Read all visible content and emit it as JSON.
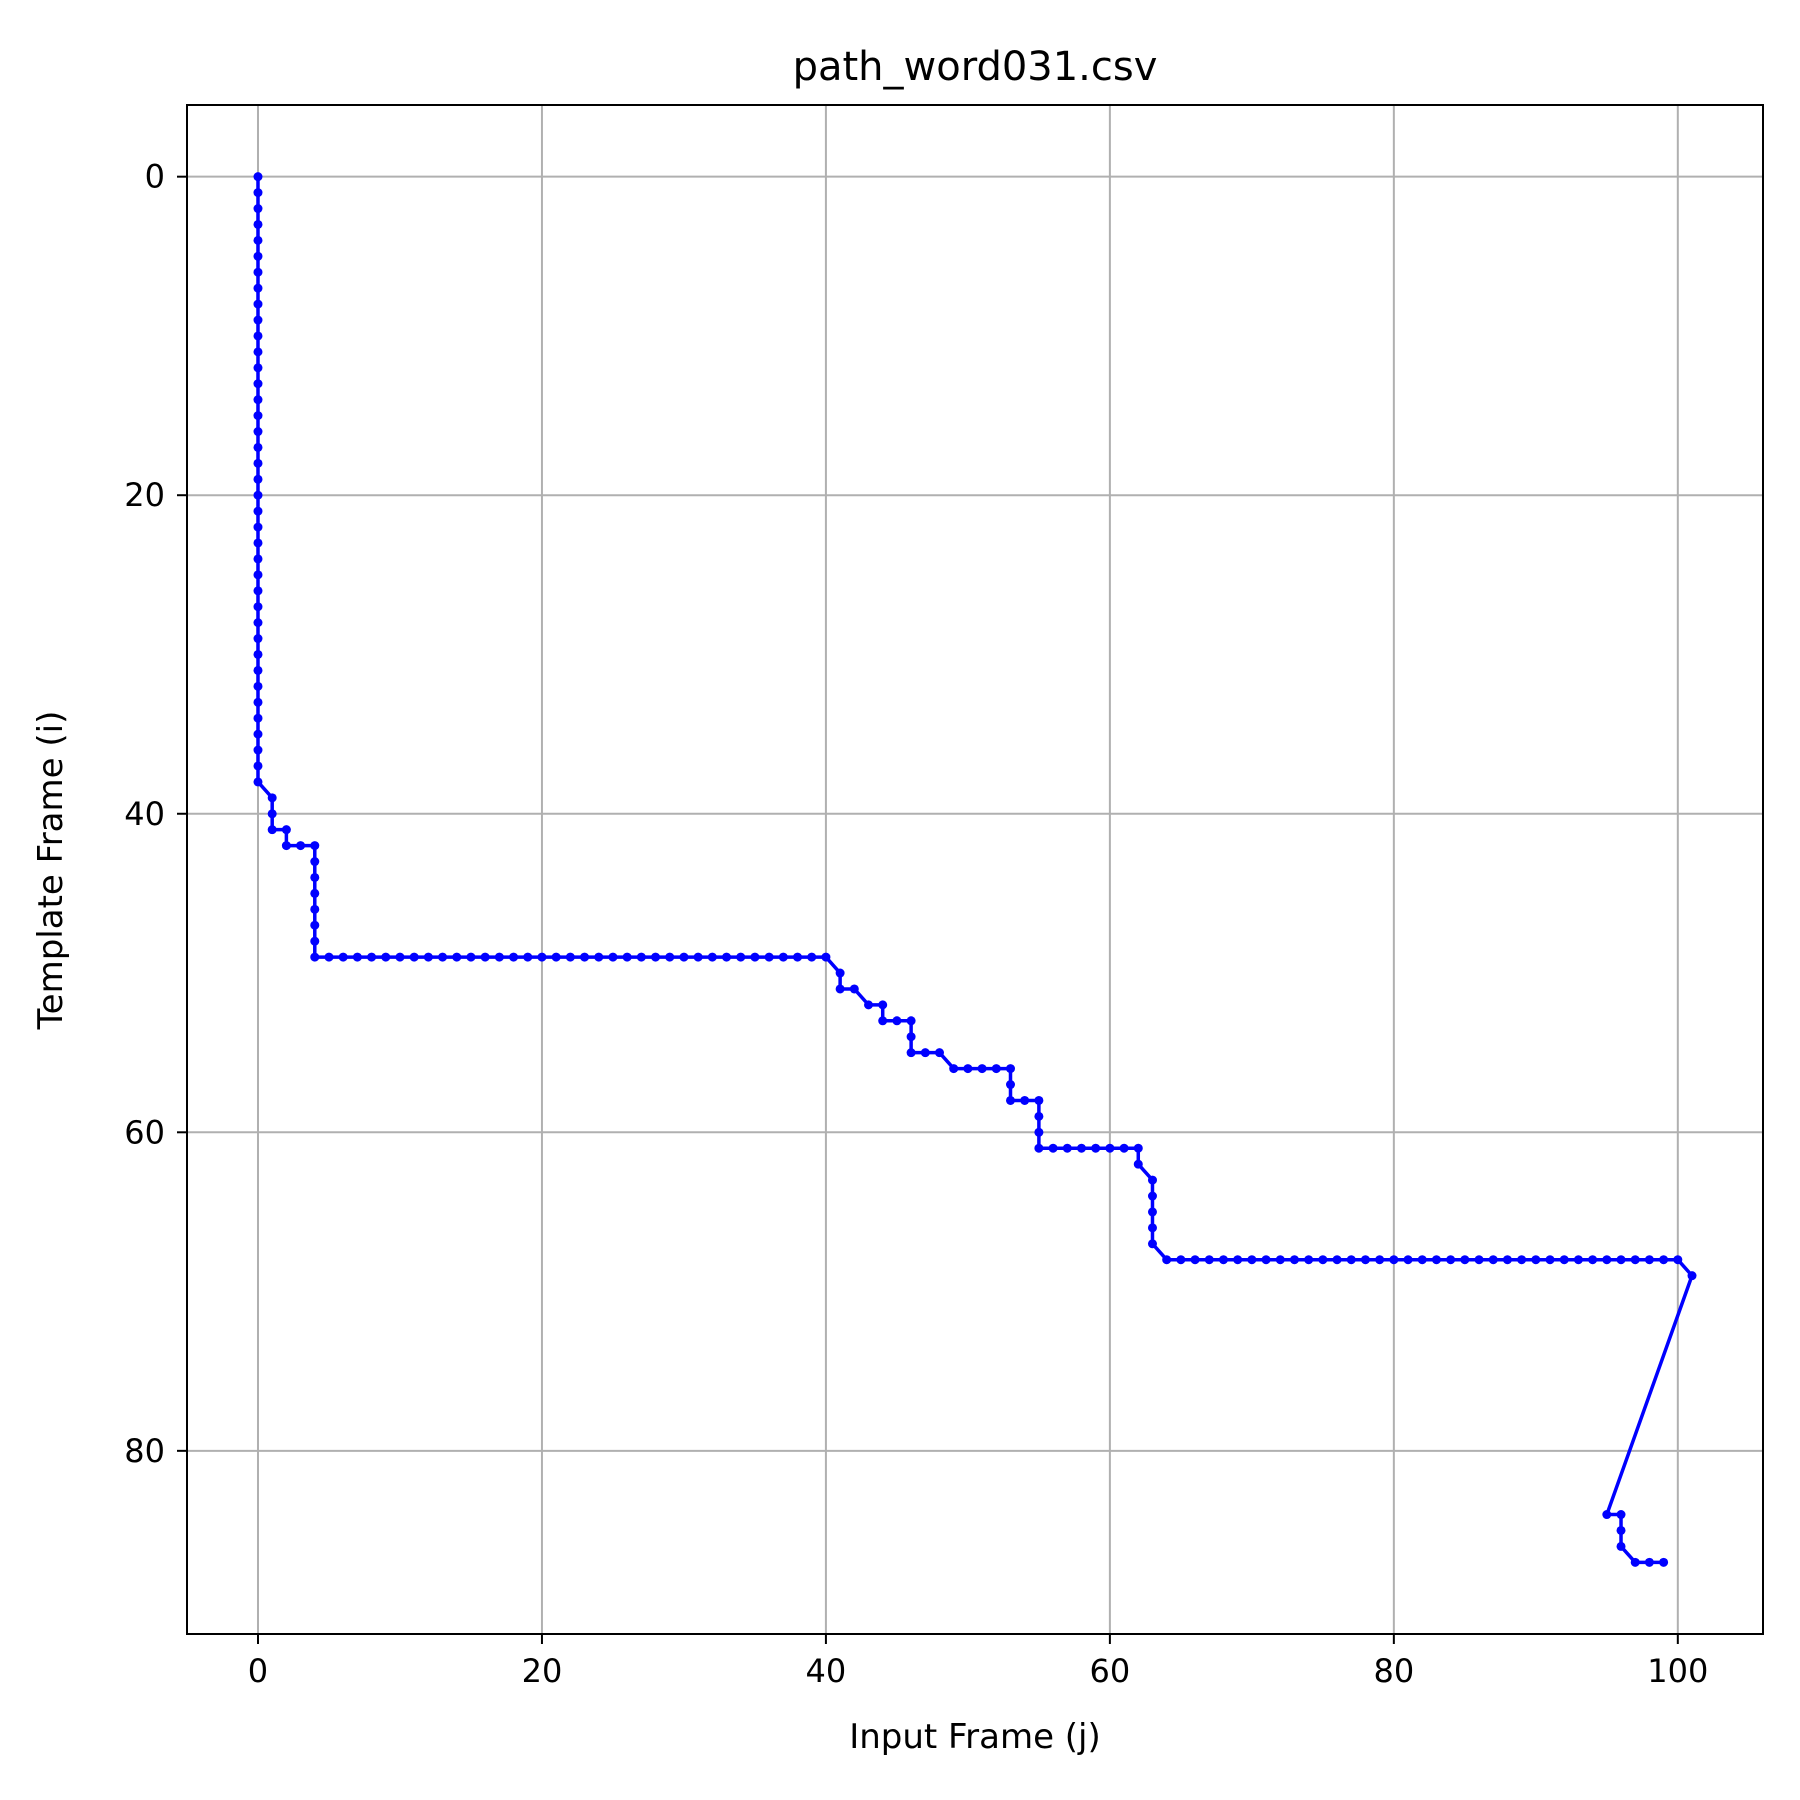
{
  "chart_data": {
    "type": "line",
    "title": "path_word031.csv",
    "xlabel": "Input Frame (j)",
    "ylabel": "Template Frame (i)",
    "xlim": [
      -5,
      106
    ],
    "ylim": [
      -4.5,
      91.5
    ],
    "y_inverted": true,
    "grid": true,
    "x_ticks": [
      0,
      20,
      40,
      60,
      80,
      100
    ],
    "y_ticks": [
      0,
      20,
      40,
      60,
      80
    ],
    "x_tick_labels": [
      "0",
      "20",
      "40",
      "60",
      "80",
      "100"
    ],
    "y_tick_labels": [
      "0",
      "20",
      "40",
      "60",
      "80"
    ],
    "series": [
      {
        "color": "#0000ff",
        "marker": "dot",
        "points": [
          [
            0,
            0
          ],
          [
            0,
            1
          ],
          [
            0,
            2
          ],
          [
            0,
            3
          ],
          [
            0,
            4
          ],
          [
            0,
            5
          ],
          [
            0,
            6
          ],
          [
            0,
            7
          ],
          [
            0,
            8
          ],
          [
            0,
            9
          ],
          [
            0,
            10
          ],
          [
            0,
            11
          ],
          [
            0,
            12
          ],
          [
            0,
            13
          ],
          [
            0,
            14
          ],
          [
            0,
            15
          ],
          [
            0,
            16
          ],
          [
            0,
            17
          ],
          [
            0,
            18
          ],
          [
            0,
            19
          ],
          [
            0,
            20
          ],
          [
            0,
            21
          ],
          [
            0,
            22
          ],
          [
            0,
            23
          ],
          [
            0,
            24
          ],
          [
            0,
            25
          ],
          [
            0,
            26
          ],
          [
            0,
            27
          ],
          [
            0,
            28
          ],
          [
            0,
            29
          ],
          [
            0,
            30
          ],
          [
            0,
            31
          ],
          [
            0,
            32
          ],
          [
            0,
            33
          ],
          [
            0,
            34
          ],
          [
            0,
            35
          ],
          [
            0,
            36
          ],
          [
            0,
            37
          ],
          [
            0,
            38
          ],
          [
            1,
            39
          ],
          [
            1,
            40
          ],
          [
            1,
            41
          ],
          [
            2,
            41
          ],
          [
            2,
            42
          ],
          [
            3,
            42
          ],
          [
            4,
            42
          ],
          [
            4,
            43
          ],
          [
            4,
            44
          ],
          [
            4,
            45
          ],
          [
            4,
            46
          ],
          [
            4,
            47
          ],
          [
            4,
            48
          ],
          [
            4,
            49
          ],
          [
            5,
            49
          ],
          [
            6,
            49
          ],
          [
            7,
            49
          ],
          [
            8,
            49
          ],
          [
            9,
            49
          ],
          [
            10,
            49
          ],
          [
            11,
            49
          ],
          [
            12,
            49
          ],
          [
            13,
            49
          ],
          [
            14,
            49
          ],
          [
            15,
            49
          ],
          [
            16,
            49
          ],
          [
            17,
            49
          ],
          [
            18,
            49
          ],
          [
            19,
            49
          ],
          [
            20,
            49
          ],
          [
            21,
            49
          ],
          [
            22,
            49
          ],
          [
            23,
            49
          ],
          [
            24,
            49
          ],
          [
            25,
            49
          ],
          [
            26,
            49
          ],
          [
            27,
            49
          ],
          [
            28,
            49
          ],
          [
            29,
            49
          ],
          [
            30,
            49
          ],
          [
            31,
            49
          ],
          [
            32,
            49
          ],
          [
            33,
            49
          ],
          [
            34,
            49
          ],
          [
            35,
            49
          ],
          [
            36,
            49
          ],
          [
            37,
            49
          ],
          [
            38,
            49
          ],
          [
            39,
            49
          ],
          [
            40,
            49
          ],
          [
            41,
            50
          ],
          [
            41,
            51
          ],
          [
            42,
            51
          ],
          [
            43,
            52
          ],
          [
            44,
            52
          ],
          [
            44,
            53
          ],
          [
            45,
            53
          ],
          [
            46,
            53
          ],
          [
            46,
            54
          ],
          [
            46,
            55
          ],
          [
            47,
            55
          ],
          [
            48,
            55
          ],
          [
            49,
            56
          ],
          [
            50,
            56
          ],
          [
            51,
            56
          ],
          [
            52,
            56
          ],
          [
            53,
            56
          ],
          [
            53,
            57
          ],
          [
            53,
            58
          ],
          [
            54,
            58
          ],
          [
            55,
            58
          ],
          [
            55,
            59
          ],
          [
            55,
            60
          ],
          [
            55,
            61
          ],
          [
            56,
            61
          ],
          [
            57,
            61
          ],
          [
            58,
            61
          ],
          [
            59,
            61
          ],
          [
            60,
            61
          ],
          [
            61,
            61
          ],
          [
            62,
            61
          ],
          [
            62,
            62
          ],
          [
            63,
            63
          ],
          [
            63,
            64
          ],
          [
            63,
            65
          ],
          [
            63,
            66
          ],
          [
            63,
            67
          ],
          [
            64,
            68
          ],
          [
            65,
            68
          ],
          [
            66,
            68
          ],
          [
            67,
            68
          ],
          [
            68,
            68
          ],
          [
            69,
            68
          ],
          [
            70,
            68
          ],
          [
            71,
            68
          ],
          [
            72,
            68
          ],
          [
            73,
            68
          ],
          [
            74,
            68
          ],
          [
            75,
            68
          ],
          [
            76,
            68
          ],
          [
            77,
            68
          ],
          [
            78,
            68
          ],
          [
            79,
            68
          ],
          [
            80,
            68
          ],
          [
            81,
            68
          ],
          [
            82,
            68
          ],
          [
            83,
            68
          ],
          [
            84,
            68
          ],
          [
            85,
            68
          ],
          [
            86,
            68
          ],
          [
            87,
            68
          ],
          [
            88,
            68
          ],
          [
            89,
            68
          ],
          [
            90,
            68
          ],
          [
            91,
            68
          ],
          [
            92,
            68
          ],
          [
            93,
            68
          ],
          [
            94,
            68
          ],
          [
            95,
            68
          ],
          [
            96,
            68
          ],
          [
            97,
            68
          ],
          [
            98,
            68
          ],
          [
            99,
            68
          ],
          [
            100,
            68
          ],
          [
            101,
            69
          ],
          [
            95,
            84
          ],
          [
            96,
            84
          ],
          [
            96,
            85
          ],
          [
            96,
            86
          ],
          [
            97,
            87
          ],
          [
            98,
            87
          ],
          [
            99,
            87
          ]
        ]
      }
    ]
  }
}
